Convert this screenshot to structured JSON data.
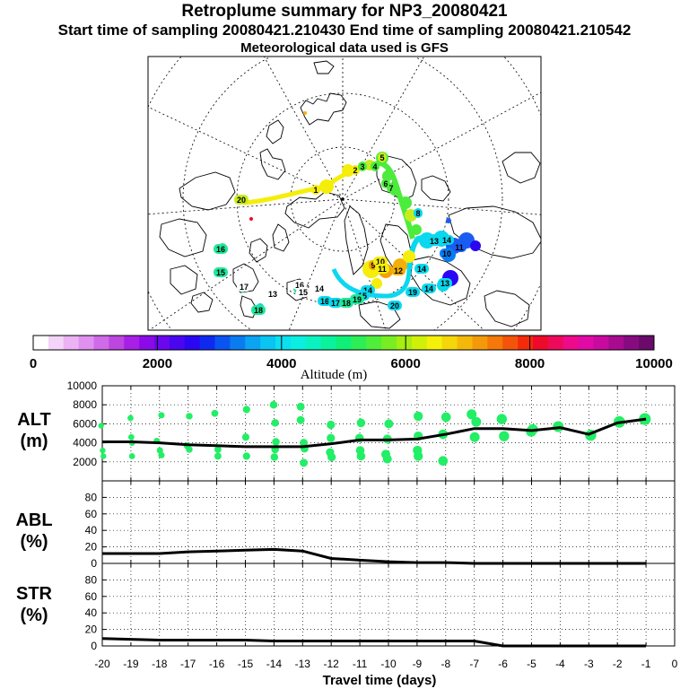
{
  "titles": {
    "main": "Retroplume summary for NP3_20080421",
    "sampling": "Start time of sampling 20080421.210430     End time of sampling 20080421.210542",
    "met": "Meteorological data used is GFS"
  },
  "colorbar": {
    "label": "Altitude (m)",
    "ticks": [
      "0",
      "2000",
      "4000",
      "6000",
      "8000",
      "10000"
    ],
    "colors": [
      "#ffffff",
      "#f4d4f8",
      "#ebb2f4",
      "#e090ef",
      "#cf6be8",
      "#bd46e0",
      "#a81fe6",
      "#8a0be8",
      "#6a07ee",
      "#4a06f0",
      "#2a06f2",
      "#0f2af0",
      "#0a55f2",
      "#0a7cf2",
      "#0aa4f2",
      "#0ac4f2",
      "#0ae0ef",
      "#0aefe0",
      "#0af2c0",
      "#0af29c",
      "#10f078",
      "#2cef55",
      "#4fee3a",
      "#78ee22",
      "#a5ee12",
      "#d0f00a",
      "#f4f00a",
      "#f4d60a",
      "#f4b80a",
      "#f49a0a",
      "#f4780a",
      "#f4540a",
      "#f42a0a",
      "#ee0a2a",
      "#ee0a5a",
      "#ee0a8a",
      "#e00aa4",
      "#c80aa0",
      "#a80a90",
      "#880a80",
      "#6a0a6a"
    ]
  },
  "map_labels": [
    {
      "text": "20",
      "color": "#c8ec1e"
    },
    {
      "text": "1",
      "color": "#f4ee0a"
    },
    {
      "text": "2",
      "color": "#f4ee0a"
    },
    {
      "text": "3",
      "color": "#4cec3c"
    },
    {
      "text": "4",
      "color": "#4cec3c"
    },
    {
      "text": "5",
      "color": "#c8ec1e"
    },
    {
      "text": "6",
      "color": "#4cec3c"
    },
    {
      "text": "7",
      "color": "#4cec3c"
    },
    {
      "text": "8",
      "color": "#0ad8ee"
    },
    {
      "text": "9",
      "color": "#f4a00a"
    },
    {
      "text": "10",
      "color": "#f4ee0a"
    },
    {
      "text": "11",
      "color": "#f4ee0a"
    },
    {
      "text": "12",
      "color": "#f4b00a"
    },
    {
      "text": "13",
      "color": "#0ad8ee"
    },
    {
      "text": "14",
      "color": "#0ad8ee"
    },
    {
      "text": "10",
      "color": "#0a7cf2"
    },
    {
      "text": "11",
      "color": "#1a5cf2"
    },
    {
      "text": "13",
      "color": "#0ad8ee"
    },
    {
      "text": "14",
      "color": "#0ad8ee"
    },
    {
      "text": "15",
      "color": "#0ad8ee"
    },
    {
      "text": "16",
      "color": "#0ad8ee"
    },
    {
      "text": "17",
      "color": "#0ad8ee"
    },
    {
      "text": "18",
      "color": "#20e89a"
    },
    {
      "text": "19",
      "color": "#20e89a"
    },
    {
      "text": "16",
      "color": "#ffffff"
    },
    {
      "text": "15",
      "color": "#ffffff"
    },
    {
      "text": "14",
      "color": "#ffffff"
    },
    {
      "text": "13",
      "color": "#ffffff"
    },
    {
      "text": "16",
      "color": "#20e89a"
    },
    {
      "text": "15",
      "color": "#20e89a"
    },
    {
      "text": "17",
      "color": "#ffffff"
    },
    {
      "text": "18",
      "color": "#20e89a"
    },
    {
      "text": "20",
      "color": "#0ad8ee"
    },
    {
      "text": "19",
      "color": "#0ad8ee"
    },
    {
      "text": "14",
      "color": "#0ad8ee"
    },
    {
      "text": "14",
      "color": "#0ad8ee"
    }
  ],
  "chart_data": [
    {
      "type": "scatter",
      "title": "ALT (m)",
      "ylabel": "ALT (m)",
      "ylim": [
        0,
        10000
      ],
      "yticks": [
        2000,
        4000,
        6000,
        8000,
        10000
      ],
      "mean_line": {
        "x": [
          -20,
          -19,
          -18,
          -17,
          -16,
          -15,
          -14,
          -13,
          -12,
          -11,
          -10,
          -9,
          -8,
          -7,
          -6,
          -5,
          -4,
          -3,
          -2,
          -1
        ],
        "y": [
          4100,
          4100,
          4000,
          3800,
          3700,
          3600,
          3600,
          3600,
          3900,
          4300,
          4300,
          4400,
          4900,
          5500,
          5500,
          5300,
          5600,
          4900,
          6100,
          6500
        ]
      },
      "point_color": "#22ee66",
      "points": [
        {
          "x": -20,
          "y": 5800
        },
        {
          "x": -20,
          "y": 3200
        },
        {
          "x": -20,
          "y": 2600
        },
        {
          "x": -19,
          "y": 6600
        },
        {
          "x": -19,
          "y": 4600
        },
        {
          "x": -19,
          "y": 4000
        },
        {
          "x": -19,
          "y": 2600
        },
        {
          "x": -18,
          "y": 6900
        },
        {
          "x": -18,
          "y": 4200
        },
        {
          "x": -18,
          "y": 2700
        },
        {
          "x": -18,
          "y": 3200
        },
        {
          "x": -17,
          "y": 6800
        },
        {
          "x": -17,
          "y": 3300
        },
        {
          "x": -17,
          "y": 3700
        },
        {
          "x": -16,
          "y": 7100
        },
        {
          "x": -16,
          "y": 2600
        },
        {
          "x": -16,
          "y": 3300
        },
        {
          "x": -15,
          "y": 7500
        },
        {
          "x": -15,
          "y": 4600
        },
        {
          "x": -15,
          "y": 2600
        },
        {
          "x": -14,
          "y": 8000
        },
        {
          "x": -14,
          "y": 6100
        },
        {
          "x": -14,
          "y": 4100
        },
        {
          "x": -14,
          "y": 3300
        },
        {
          "x": -14,
          "y": 2500
        },
        {
          "x": -13,
          "y": 7800
        },
        {
          "x": -13,
          "y": 6400
        },
        {
          "x": -13,
          "y": 4000
        },
        {
          "x": -13,
          "y": 3400
        },
        {
          "x": -13,
          "y": 1900
        },
        {
          "x": -12,
          "y": 5900
        },
        {
          "x": -12,
          "y": 4500
        },
        {
          "x": -12,
          "y": 3000
        },
        {
          "x": -12,
          "y": 2500
        },
        {
          "x": -11,
          "y": 6100
        },
        {
          "x": -11,
          "y": 4500
        },
        {
          "x": -11,
          "y": 3200
        },
        {
          "x": -11,
          "y": 2600
        },
        {
          "x": -10,
          "y": 6000
        },
        {
          "x": -10,
          "y": 4400
        },
        {
          "x": -10,
          "y": 2800
        },
        {
          "x": -10,
          "y": 2300
        },
        {
          "x": -9,
          "y": 6800
        },
        {
          "x": -9,
          "y": 4700
        },
        {
          "x": -9,
          "y": 3200
        },
        {
          "x": -9,
          "y": 2600
        },
        {
          "x": -8,
          "y": 6700
        },
        {
          "x": -8,
          "y": 4900
        },
        {
          "x": -8,
          "y": 2100
        },
        {
          "x": -7,
          "y": 7000
        },
        {
          "x": -7,
          "y": 6200
        },
        {
          "x": -7,
          "y": 4600
        },
        {
          "x": -6,
          "y": 6500
        },
        {
          "x": -6,
          "y": 4700
        },
        {
          "x": -5,
          "y": 5400
        },
        {
          "x": -5,
          "y": 5200
        },
        {
          "x": -4,
          "y": 5700
        },
        {
          "x": -3,
          "y": 4800
        },
        {
          "x": -2,
          "y": 6200
        },
        {
          "x": -1,
          "y": 6500
        }
      ]
    },
    {
      "type": "line",
      "title": "ABL (%)",
      "ylabel": "ABL (%)",
      "ylim": [
        0,
        100
      ],
      "yticks": [
        0,
        20,
        40,
        60,
        80
      ],
      "x": [
        -20,
        -19,
        -18,
        -17,
        -16,
        -15,
        -14,
        -13,
        -12,
        -11,
        -10,
        -9,
        -8,
        -7,
        -6,
        -5,
        -4,
        -3,
        -2,
        -1
      ],
      "y": [
        12,
        12,
        12,
        14,
        15,
        16,
        17,
        15,
        6,
        4,
        2,
        1,
        1,
        0,
        0,
        0,
        0,
        0,
        0,
        0
      ]
    },
    {
      "type": "line",
      "title": "STR (%)",
      "ylabel": "STR (%)",
      "ylim": [
        0,
        100
      ],
      "yticks": [
        0,
        20,
        40,
        60,
        80
      ],
      "x": [
        -20,
        -19,
        -18,
        -17,
        -16,
        -15,
        -14,
        -13,
        -12,
        -11,
        -10,
        -9,
        -8,
        -7,
        -6,
        -5,
        -4,
        -3,
        -2,
        -1
      ],
      "y": [
        9,
        8,
        7,
        7,
        7,
        7,
        6,
        6,
        6,
        6,
        6,
        6,
        6,
        6,
        0,
        0,
        0,
        0,
        0,
        0
      ],
      "xlabel": "Travel time (days)",
      "xticks": [
        "-20",
        "-19",
        "-18",
        "-17",
        "-16",
        "-15",
        "-14",
        "-13",
        "-12",
        "-11",
        "-10",
        "-9",
        "-8",
        "-7",
        "-6",
        "-5",
        "-4",
        "-3",
        "-2",
        "-1",
        "0"
      ]
    }
  ]
}
